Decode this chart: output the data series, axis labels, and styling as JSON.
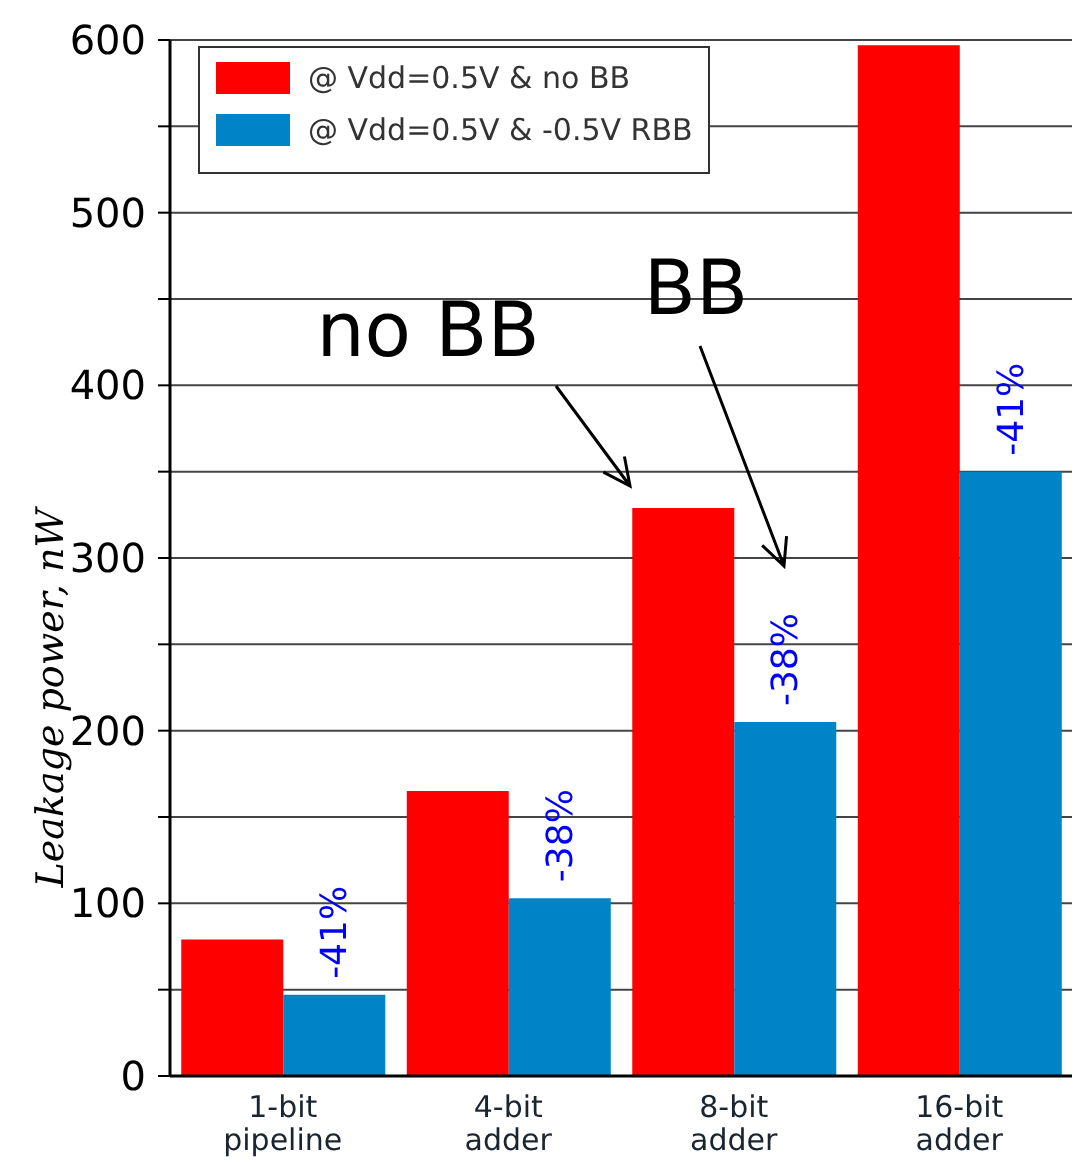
{
  "chart_data": {
    "type": "bar",
    "ylabel": "Leakage power, nW",
    "categories": [
      "1-bit pipeline",
      "4-bit adder",
      "8-bit adder",
      "16-bit adder"
    ],
    "series": [
      {
        "name": "@ Vdd=0.5V & no BB",
        "color": "#ff0000",
        "values": [
          79,
          165,
          329,
          597
        ]
      },
      {
        "name": "@ Vdd=0.5V & -0.5V RBB",
        "color": "#0084c8",
        "values": [
          47,
          103,
          205,
          350
        ]
      }
    ],
    "ylim": [
      0,
      600
    ],
    "yticks": [
      0,
      {
        "value": 50,
        "label": null
      },
      100,
      {
        "value": 150,
        "label": null
      },
      200,
      {
        "value": 250,
        "label": null
      },
      300,
      {
        "value": 350,
        "label": null
      },
      400,
      {
        "value": 450,
        "label": null
      },
      500,
      {
        "value": 550,
        "label": null
      },
      600
    ],
    "grid": "y",
    "legend": "top left",
    "annotations": [
      {
        "text": "-41%",
        "x": "1-bit pipeline",
        "y": 47
      },
      {
        "text": "-38%",
        "x": "4-bit adder",
        "y": 103
      },
      {
        "text": "-38%",
        "x": "8-bit adder",
        "y": 205
      },
      {
        "text": "-41%",
        "x": "16-bit adder",
        "y": 350
      },
      "no BB",
      "BB"
    ]
  }
}
